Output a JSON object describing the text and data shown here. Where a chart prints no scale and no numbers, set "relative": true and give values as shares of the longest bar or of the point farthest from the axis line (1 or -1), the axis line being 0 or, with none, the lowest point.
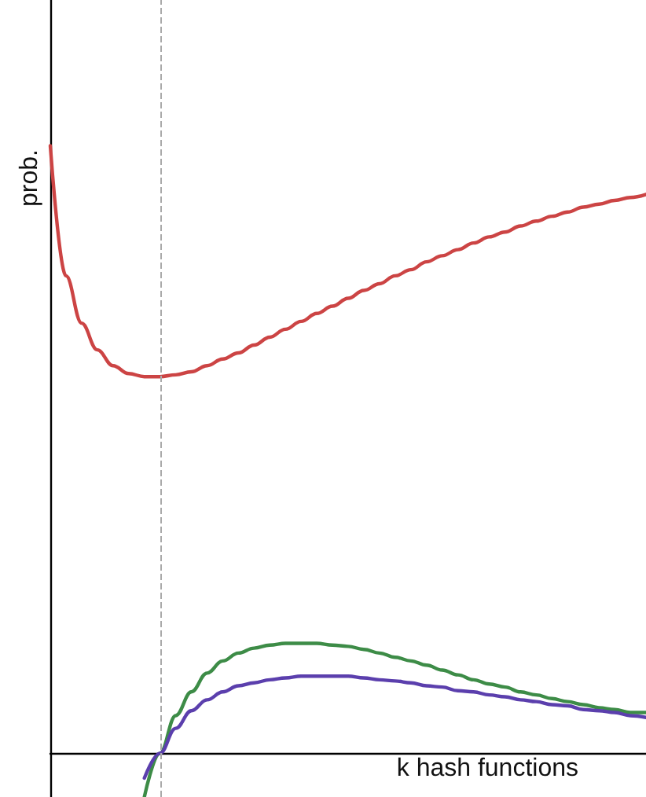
{
  "chart_data": {
    "type": "line",
    "relative": true,
    "xlabel": "k hash functions",
    "ylabel": "prob.",
    "categories": [
      null,
      null,
      null,
      null,
      null,
      null,
      null,
      null,
      null,
      null,
      null,
      null,
      null,
      null,
      null,
      null,
      null,
      null,
      null,
      null,
      null,
      null,
      null,
      null,
      null,
      null,
      null,
      null,
      null,
      null,
      null,
      null,
      null,
      null,
      null,
      null,
      null,
      null,
      null
    ],
    "series": [
      {
        "color": "#cc4444",
        "values": [
          1.0,
          0.786,
          0.708,
          0.664,
          0.638,
          0.625,
          0.62,
          0.62,
          0.623,
          0.628,
          0.638,
          0.649,
          0.659,
          0.672,
          0.685,
          0.698,
          0.711,
          0.724,
          0.736,
          0.749,
          0.762,
          0.773,
          0.786,
          0.796,
          0.809,
          0.819,
          0.829,
          0.84,
          0.85,
          0.858,
          0.868,
          0.876,
          0.884,
          0.891,
          0.899,
          0.904,
          0.91,
          0.915,
          0.92
        ]
      },
      {
        "color": "#3d8c47",
        "values": [
          null,
          null,
          null,
          null,
          null,
          null,
          -0.072,
          0,
          0.062,
          0.101,
          0.132,
          0.152,
          0.165,
          0.173,
          0.178,
          0.181,
          0.181,
          0.181,
          0.178,
          0.176,
          0.171,
          0.165,
          0.158,
          0.152,
          0.145,
          0.137,
          0.129,
          0.121,
          0.114,
          0.109,
          0.101,
          0.096,
          0.09,
          0.085,
          0.08,
          0.075,
          0.072,
          0.067,
          0.067
        ]
      },
      {
        "color": "#5b3fad",
        "values": [
          null,
          null,
          null,
          null,
          null,
          null,
          -0.041,
          0,
          0.041,
          0.07,
          0.088,
          0.101,
          0.111,
          0.116,
          0.121,
          0.124,
          0.127,
          0.127,
          0.127,
          0.127,
          0.124,
          0.121,
          0.119,
          0.116,
          0.111,
          0.109,
          0.103,
          0.101,
          0.096,
          0.093,
          0.088,
          0.085,
          0.08,
          0.078,
          0.072,
          0.07,
          0.067,
          0.062,
          0.059
        ]
      }
    ],
    "marker": "none",
    "line_style": "solid"
  }
}
